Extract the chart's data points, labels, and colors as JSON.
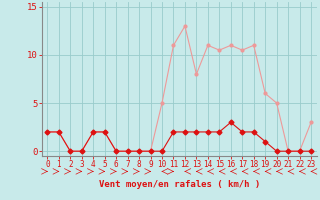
{
  "x": [
    0,
    1,
    2,
    3,
    4,
    5,
    6,
    7,
    8,
    9,
    10,
    11,
    12,
    13,
    14,
    15,
    16,
    17,
    18,
    19,
    20,
    21,
    22,
    23
  ],
  "y_moyen": [
    2,
    2,
    0,
    0,
    2,
    2,
    0,
    0,
    0,
    0,
    0,
    2,
    2,
    2,
    2,
    2,
    3,
    2,
    2,
    1,
    0,
    0,
    0,
    0
  ],
  "y_rafales": [
    2,
    2,
    0,
    0,
    2,
    2,
    0,
    0,
    0,
    0,
    5,
    11,
    13,
    8,
    11,
    10.5,
    11,
    10.5,
    11,
    6,
    5,
    0,
    0,
    3
  ],
  "xlabel": "Vent moyen/en rafales ( km/h )",
  "xlim": [
    -0.5,
    23.5
  ],
  "ylim": [
    -0.5,
    15.5
  ],
  "yticks": [
    0,
    5,
    10,
    15
  ],
  "xticks": [
    0,
    1,
    2,
    3,
    4,
    5,
    6,
    7,
    8,
    9,
    10,
    11,
    12,
    13,
    14,
    15,
    16,
    17,
    18,
    19,
    20,
    21,
    22,
    23
  ],
  "color_moyen": "#dd1111",
  "color_rafales": "#ee9999",
  "bg_color": "#c8eaea",
  "grid_color": "#99cccc",
  "axis_color": "#888888",
  "text_color": "#dd1111",
  "marker_moyen": "D",
  "marker_rafales": "o",
  "marker_size_moyen": 2.5,
  "marker_size_rafales": 2.0,
  "linewidth": 0.8,
  "arrow_right_indices": [
    0,
    1,
    2,
    3,
    4,
    5,
    6,
    7,
    8,
    9,
    11
  ],
  "arrow_left_indices": [
    10,
    12,
    13,
    14,
    15,
    16,
    17,
    18,
    19,
    20,
    21,
    22,
    23
  ]
}
